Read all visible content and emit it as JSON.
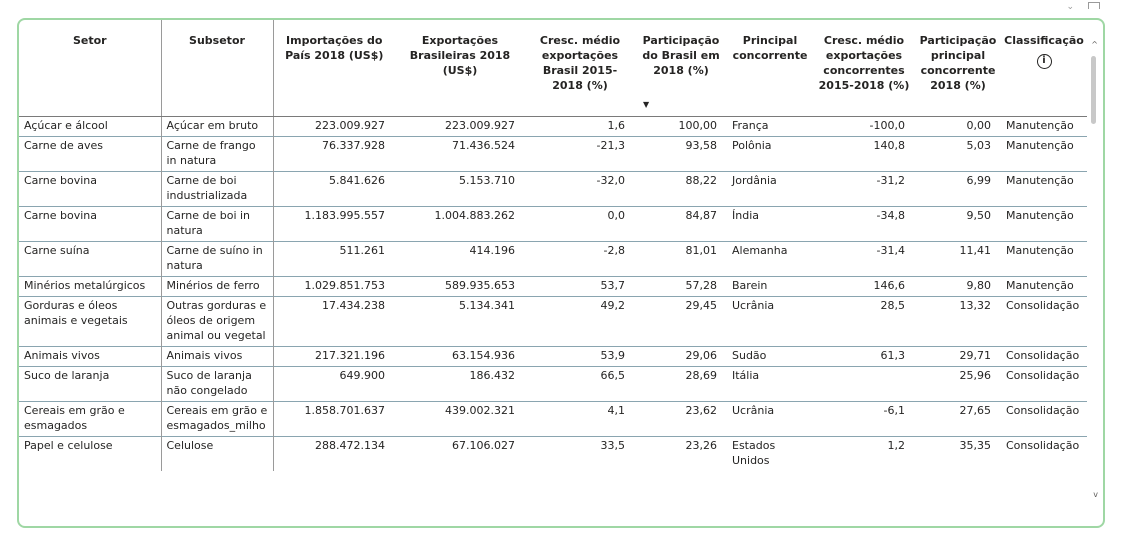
{
  "window_controls": {
    "more_glyph": "⌄",
    "focus_label": ""
  },
  "table": {
    "columns": [
      "Setor",
      "Subsetor",
      "Importações do País 2018 (US$)",
      "Exportações Brasileiras 2018 (US$)",
      "Cresc. médio exportações Brasil 2015-2018 (%)",
      "Participação do Brasil em 2018 (%)",
      "Principal concorrente",
      "Cresc. médio exportações concorrentes 2015-2018 (%)",
      "Participação principal concorrente 2018 (%)",
      "Classificação"
    ],
    "sorted_column": "Participação do Brasil em 2018 (%)",
    "sort_direction": "descending",
    "info_icon": "info-circle-icon",
    "rows": [
      [
        "Açúcar e álcool",
        "Açúcar em bruto",
        "223.009.927",
        "223.009.927",
        "1,6",
        "100,00",
        "França",
        "-100,0",
        "0,00",
        "Manutenção"
      ],
      [
        "Carne de aves",
        "Carne de frango in natura",
        "76.337.928",
        "71.436.524",
        "-21,3",
        "93,58",
        "Polônia",
        "140,8",
        "5,03",
        "Manutenção"
      ],
      [
        "Carne bovina",
        "Carne de boi industrializada",
        "5.841.626",
        "5.153.710",
        "-32,0",
        "88,22",
        "Jordânia",
        "-31,2",
        "6,99",
        "Manutenção"
      ],
      [
        "Carne bovina",
        "Carne de boi in natura",
        "1.183.995.557",
        "1.004.883.262",
        "0,0",
        "84,87",
        "Índia",
        "-34,8",
        "9,50",
        "Manutenção"
      ],
      [
        "Carne suína",
        "Carne de suíno in natura",
        "511.261",
        "414.196",
        "-2,8",
        "81,01",
        "Alemanha",
        "-31,4",
        "11,41",
        "Manutenção"
      ],
      [
        "Minérios metalúrgicos",
        "Minérios de ferro",
        "1.029.851.753",
        "589.935.653",
        "53,7",
        "57,28",
        "Barein",
        "146,6",
        "9,80",
        "Manutenção"
      ],
      [
        "Gorduras e óleos animais e vegetais",
        "Outras gorduras e óleos de origem animal ou vegetal",
        "17.434.238",
        "5.134.341",
        "49,2",
        "29,45",
        "Ucrânia",
        "28,5",
        "13,32",
        "Consolidação"
      ],
      [
        "Animais vivos",
        "Animais vivos",
        "217.321.196",
        "63.154.936",
        "53,9",
        "29,06",
        "Sudão",
        "61,3",
        "29,71",
        "Consolidação"
      ],
      [
        "Suco de laranja",
        "Suco de laranja não congelado",
        "649.900",
        "186.432",
        "66,5",
        "28,69",
        "Itália",
        "",
        "25,96",
        "Consolidação"
      ],
      [
        "Cereais em grão e esmagados",
        "Cereais em grão e esmagados_milho",
        "1.858.701.637",
        "439.002.321",
        "4,1",
        "23,62",
        "Ucrânia",
        "-6,1",
        "27,65",
        "Consolidação"
      ],
      [
        "Papel e celulose",
        "Celulose",
        "288.472.134",
        "67.106.027",
        "33,5",
        "23,26",
        "Estados Unidos",
        "1,2",
        "35,35",
        "Consolidação"
      ]
    ]
  },
  "colors": {
    "visual_border": "#9fd7a4",
    "row_divider": "#8aa5b0",
    "text": "#252423"
  }
}
